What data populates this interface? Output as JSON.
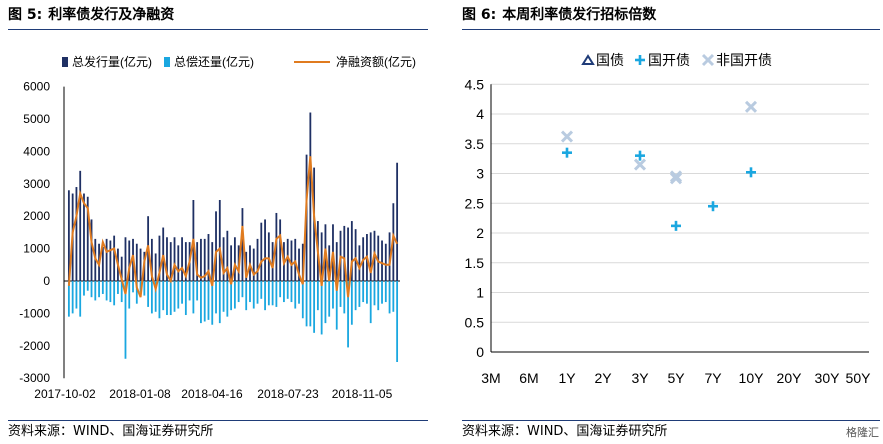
{
  "left_panel": {
    "figure_no": "图 5:",
    "title": "利率债发行及净融资",
    "source": "资料来源：WIND、国海证券研究所"
  },
  "right_panel": {
    "figure_no": "图 6:",
    "title": "本周利率债发行招标倍数",
    "source": "资料来源：WIND、国海证券研究所"
  },
  "watermark": "格隆汇",
  "colors": {
    "issue": "#1f3064",
    "repay": "#1aa7e0",
    "net": "#e07b1f",
    "sovereign": "#1f3c78",
    "cdb": "#1aa7e0",
    "noncdb": "#b9cbe0"
  },
  "chart_data": [
    {
      "type": "bar",
      "title": "利率债发行及净融资",
      "legend_position": "top",
      "x_tick_labels": [
        "2017-10-02",
        "2018-01-08",
        "2018-04-16",
        "2018-07-23",
        "2018-11-05"
      ],
      "yticks": [
        "6000",
        "5000",
        "4000",
        "3000",
        "2000",
        "1000",
        "0",
        "-1000",
        "-2000",
        "-3000"
      ],
      "ylim": [
        -3000,
        6000
      ],
      "series": [
        {
          "name": "总发行量(亿元)",
          "type": "bar",
          "values": [
            2800,
            2700,
            2900,
            3400,
            2700,
            2600,
            1900,
            1300,
            1150,
            1050,
            1300,
            1250,
            1400,
            1000,
            750,
            1350,
            1250,
            1300,
            1150,
            1000,
            900,
            2000,
            1300,
            850,
            1400,
            1650,
            1350,
            1200,
            1350,
            1100,
            1350,
            1200,
            1200,
            2500,
            1200,
            1300,
            1300,
            1450,
            1200,
            2150,
            2500,
            1350,
            1550,
            1100,
            1350,
            1100,
            2250,
            900,
            1100,
            1000,
            1300,
            1800,
            1900,
            1500,
            1200,
            2100,
            1900,
            1200,
            1300,
            1250,
            1300,
            1000,
            1150,
            3900,
            5200,
            3500,
            1850,
            1500,
            1750,
            1100,
            1750,
            1200,
            1550,
            1700,
            1650,
            1850,
            1600,
            1100,
            1350,
            1450,
            1500,
            1550,
            1400,
            1250,
            1150,
            1500,
            2400,
            3650
          ]
        },
        {
          "name": "总偿还量(亿元)",
          "type": "bar",
          "values": [
            -1100,
            -1000,
            -850,
            -1100,
            -450,
            -300,
            -500,
            -600,
            -500,
            -400,
            -600,
            -650,
            -750,
            -400,
            -650,
            -2400,
            -850,
            -350,
            -700,
            -350,
            -450,
            -800,
            -1000,
            -950,
            -1150,
            -900,
            -1050,
            -1050,
            -950,
            -850,
            -700,
            -1050,
            -600,
            -1000,
            -600,
            -1300,
            -1250,
            -1200,
            -1350,
            -1000,
            -1300,
            -950,
            -1100,
            -900,
            -850,
            -650,
            -500,
            -900,
            -650,
            -850,
            -700,
            -550,
            -900,
            -750,
            -750,
            -800,
            -500,
            -650,
            -550,
            -650,
            -850,
            -700,
            -1150,
            -1400,
            -1400,
            -1600,
            -900,
            -1650,
            -1300,
            -1100,
            -850,
            -1500,
            -800,
            -1000,
            -2050,
            -1350,
            -900,
            -800,
            -650,
            -700,
            -1300,
            -750,
            -900,
            -700,
            -650,
            -1000,
            -950,
            -2500
          ]
        },
        {
          "name": "净融资额(亿元)",
          "type": "line",
          "values": [
            -150,
            1500,
            2000,
            2700,
            2400,
            2250,
            1200,
            700,
            500,
            1200,
            900,
            950,
            1000,
            500,
            50,
            -400,
            400,
            800,
            -200,
            -500,
            600,
            1100,
            150,
            -250,
            250,
            800,
            200,
            0,
            500,
            300,
            400,
            150,
            600,
            1300,
            200,
            100,
            150,
            300,
            -150,
            900,
            1000,
            250,
            400,
            -100,
            500,
            300,
            1700,
            100,
            500,
            200,
            300,
            600,
            700,
            700,
            400,
            1300,
            1400,
            550,
            750,
            500,
            600,
            200,
            -100,
            2500,
            3850,
            2000,
            900,
            -150,
            1000,
            0,
            900,
            -300,
            750,
            700,
            -500,
            600,
            700,
            400,
            650,
            750,
            250,
            850,
            600,
            550,
            500,
            500,
            1400,
            1150
          ]
        }
      ]
    },
    {
      "type": "scatter",
      "title": "本周利率债发行招标倍数",
      "legend_position": "top",
      "categories": [
        "3M",
        "6M",
        "1Y",
        "2Y",
        "3Y",
        "5Y",
        "7Y",
        "10Y",
        "20Y",
        "30Y",
        "50Y"
      ],
      "yticks": [
        "4.5",
        "4",
        "3.5",
        "3",
        "2.5",
        "2",
        "1.5",
        "1",
        "0.5",
        "0"
      ],
      "ylim": [
        0,
        4.5
      ],
      "series": [
        {
          "name": "国债",
          "marker": "triangle",
          "points": []
        },
        {
          "name": "国开债",
          "marker": "plus",
          "points": [
            {
              "x": "1Y",
              "y": 3.35
            },
            {
              "x": "3Y",
              "y": 3.3
            },
            {
              "x": "5Y",
              "y": 2.12
            },
            {
              "x": "7Y",
              "y": 2.45
            },
            {
              "x": "10Y",
              "y": 3.02
            }
          ]
        },
        {
          "name": "非国开债",
          "marker": "cross",
          "points": [
            {
              "x": "1Y",
              "y": 3.62
            },
            {
              "x": "3Y",
              "y": 3.15
            },
            {
              "x": "5Y",
              "y": 2.95
            },
            {
              "x": "5Y",
              "y": 2.92
            },
            {
              "x": "10Y",
              "y": 4.12
            }
          ]
        }
      ]
    }
  ]
}
